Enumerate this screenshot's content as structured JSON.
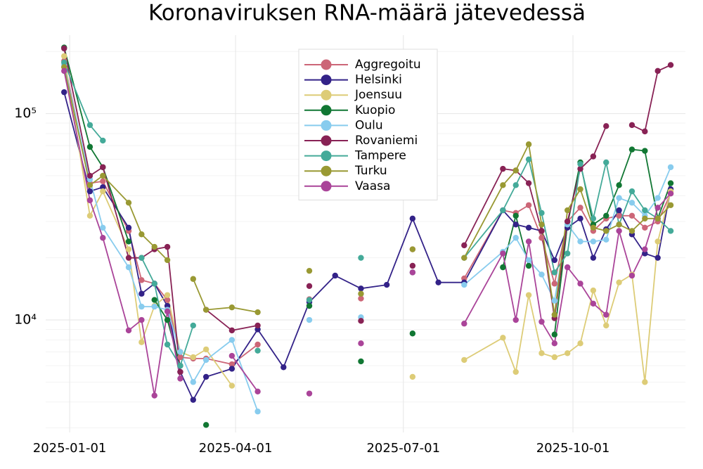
{
  "chart_data": {
    "type": "line",
    "title": "Koronaviruksen RNA-määrä jätevedessä",
    "log_y": true,
    "grid": true,
    "legend": "upper center",
    "xlim": [
      "2024-12-19",
      "2025-12-01"
    ],
    "xticks": [
      "2025-01-01",
      "2025-04-01",
      "2025-07-01",
      "2025-10-01"
    ],
    "ylim": [
      2850,
      240000
    ],
    "yticks": [
      {
        "value": 10000,
        "label": "10⁴"
      },
      {
        "value": 100000,
        "label": "10⁵"
      }
    ],
    "x": [
      "2024-12-29",
      "2025-01-12",
      "2025-01-19",
      "2025-02-02",
      "2025-02-09",
      "2025-02-16",
      "2025-02-23",
      "2025-03-02",
      "2025-03-09",
      "2025-03-16",
      "2025-03-30",
      "2025-04-13",
      "2025-04-27",
      "2025-05-11",
      "2025-05-25",
      "2025-06-08",
      "2025-06-22",
      "2025-07-06",
      "2025-07-20",
      "2025-08-03",
      "2025-08-24",
      "2025-08-31",
      "2025-09-07",
      "2025-09-14",
      "2025-09-21",
      "2025-09-28",
      "2025-10-05",
      "2025-10-12",
      "2025-10-19",
      "2025-10-26",
      "2025-11-02",
      "2025-11-09",
      "2025-11-16",
      "2025-11-23"
    ],
    "series": [
      {
        "name": "Aggregoitu",
        "color": "#cc6677",
        "values": [
          180000,
          46000,
          47000,
          27000,
          15600,
          15000,
          12500,
          6600,
          6500,
          6500,
          6100,
          7600,
          null,
          12600,
          null,
          12700,
          null,
          22000,
          null,
          15900,
          34000,
          33000,
          36000,
          25000,
          15000,
          30000,
          35000,
          27000,
          31000,
          32000,
          32000,
          28000,
          30000,
          41000
        ]
      },
      {
        "name": "Helsinki",
        "color": "#332288",
        "values": [
          127000,
          42000,
          44000,
          28000,
          13400,
          15000,
          11700,
          5600,
          4100,
          5300,
          5800,
          9000,
          5900,
          12200,
          16400,
          14200,
          14800,
          31000,
          15200,
          15200,
          34000,
          29000,
          28000,
          27000,
          19500,
          28000,
          31000,
          20000,
          27500,
          34000,
          26000,
          21000,
          20000,
          43000
        ]
      },
      {
        "name": "Joensuu",
        "color": "#ddcc77",
        "values": [
          190000,
          32000,
          42000,
          22000,
          7800,
          11700,
          13200,
          7000,
          6600,
          7200,
          4800,
          null,
          null,
          null,
          null,
          null,
          null,
          5300,
          null,
          6400,
          8200,
          5600,
          13200,
          6900,
          6600,
          6900,
          7700,
          13900,
          9400,
          15200,
          16600,
          5000,
          24000,
          42000
        ]
      },
      {
        "name": "Kuopio",
        "color": "#117733",
        "values": [
          209000,
          69000,
          55000,
          24000,
          null,
          12500,
          10000,
          6000,
          null,
          3100,
          null,
          null,
          null,
          11700,
          null,
          6300,
          null,
          8600,
          null,
          null,
          18000,
          32000,
          18300,
          null,
          8500,
          29000,
          58000,
          29000,
          32000,
          45000,
          67000,
          66000,
          31000,
          46000
        ]
      },
      {
        "name": "Oulu",
        "color": "#88ccee",
        "values": [
          172000,
          48000,
          28000,
          18000,
          11600,
          11600,
          11200,
          7000,
          5000,
          6400,
          8000,
          3600,
          null,
          10000,
          null,
          10300,
          null,
          null,
          null,
          14800,
          21400,
          25000,
          19500,
          16600,
          12400,
          29000,
          24000,
          24000,
          24500,
          39000,
          37000,
          32000,
          39000,
          55000
        ]
      },
      {
        "name": "Rovaniemi",
        "color": "#882255",
        "values": [
          207000,
          50000,
          55000,
          20000,
          20000,
          22000,
          22600,
          5600,
          null,
          11200,
          8900,
          9400,
          null,
          14600,
          null,
          9900,
          null,
          18300,
          null,
          23000,
          54000,
          53000,
          46000,
          27000,
          10200,
          30000,
          54000,
          62000,
          87000,
          null,
          88000,
          82000,
          161000,
          172000
        ]
      },
      {
        "name": "Tampere",
        "color": "#44aa99",
        "values": [
          177000,
          88000,
          74000,
          null,
          20000,
          15000,
          7600,
          6000,
          9400,
          null,
          null,
          7100,
          null,
          12500,
          null,
          20000,
          null,
          17000,
          null,
          20000,
          34000,
          45000,
          60000,
          33000,
          17000,
          21000,
          57000,
          31000,
          58000,
          29000,
          42000,
          34000,
          31000,
          27000
        ]
      },
      {
        "name": "Turku",
        "color": "#999933",
        "values": [
          168000,
          45000,
          50000,
          37000,
          26000,
          22600,
          19500,
          null,
          15800,
          11200,
          11500,
          10900,
          null,
          17300,
          null,
          13400,
          null,
          22000,
          null,
          20000,
          45000,
          53000,
          71000,
          29000,
          10600,
          34000,
          43000,
          28000,
          27000,
          29000,
          27000,
          31000,
          31000,
          36000
        ]
      },
      {
        "name": "Vaasa",
        "color": "#aa4499",
        "values": [
          161000,
          38000,
          25000,
          8900,
          10000,
          4300,
          11000,
          5200,
          null,
          null,
          6700,
          4500,
          null,
          4400,
          null,
          7700,
          null,
          17000,
          null,
          9600,
          21000,
          10000,
          24000,
          9800,
          7700,
          18000,
          15000,
          12000,
          10600,
          27000,
          16400,
          22000,
          35000,
          41000
        ]
      }
    ]
  }
}
